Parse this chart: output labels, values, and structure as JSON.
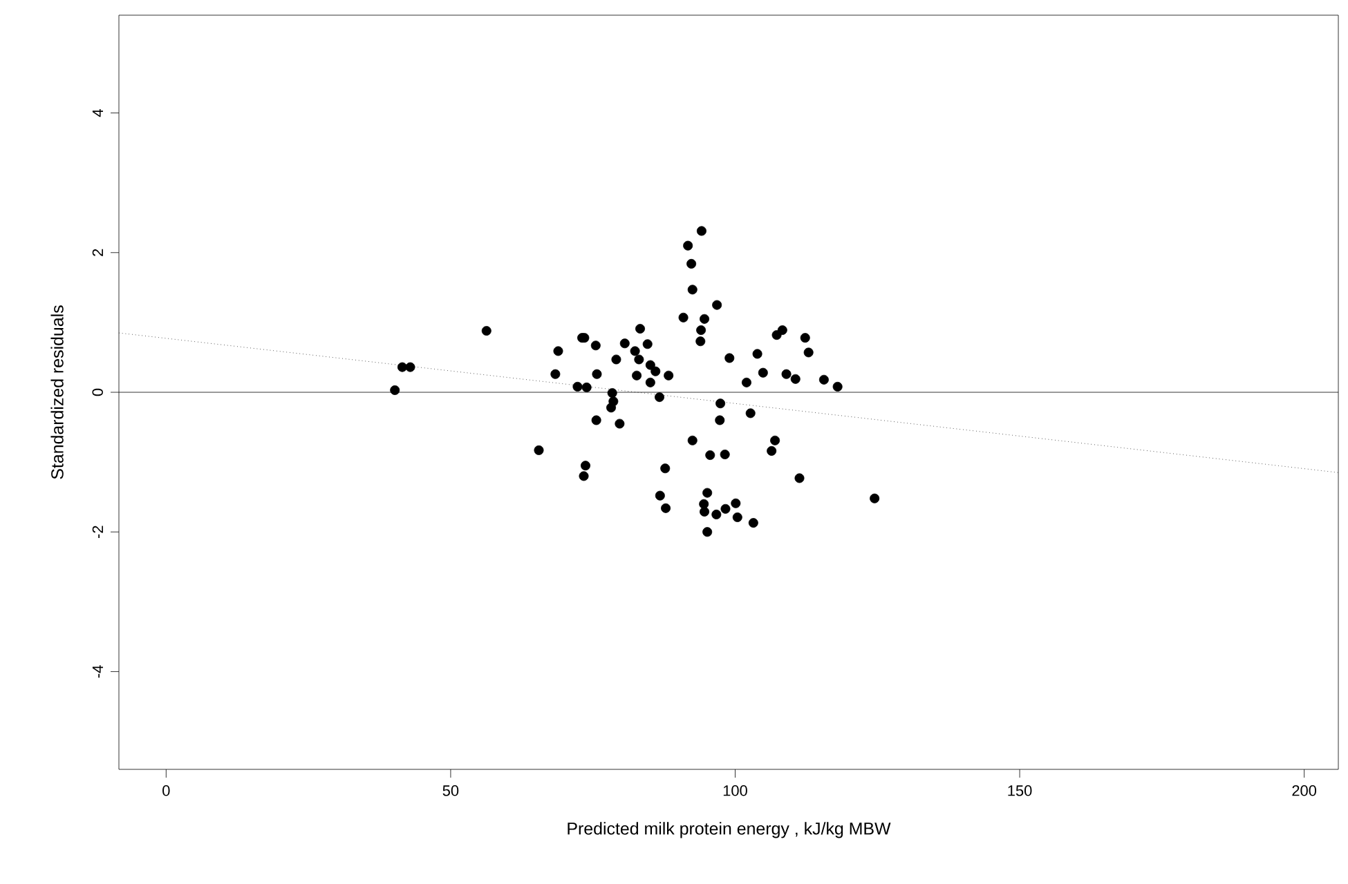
{
  "chart_data": {
    "type": "scatter",
    "xlabel": "Predicted milk protein energy , kJ/kg MBW",
    "ylabel": "Standardized residuals",
    "xlim": [
      -8.3,
      206
    ],
    "ylim": [
      -5.4,
      5.4
    ],
    "xticks": [
      0,
      50,
      100,
      150,
      200
    ],
    "yticks": [
      -4,
      -2,
      0,
      2,
      4
    ],
    "grid": false,
    "ref_lines": [
      {
        "axis": "y",
        "value": 0,
        "color": "#000000",
        "line_style": "solid"
      }
    ],
    "series": [
      {
        "color": "#000000",
        "marker": "circle",
        "x": [
          56.3,
          41.5,
          42.9,
          40.2,
          68.9,
          68.4,
          73.1,
          73.5,
          75.5,
          75.7,
          72.3,
          73.9,
          65.5,
          73.7,
          73.4,
          75.6,
          78.4,
          78.6,
          78.2,
          79.7,
          79.1,
          80.6,
          83.3,
          82.4,
          84.6,
          83.1,
          85.1,
          86.0,
          82.7,
          85.1,
          88.3,
          86.7,
          87.7,
          86.8,
          87.8,
          94.1,
          91.7,
          92.3,
          92.5,
          96.8,
          90.9,
          94.6,
          94.0,
          93.9,
          99.0,
          103.9,
          104.9,
          102.0,
          107.3,
          108.3,
          112.3,
          112.9,
          109.0,
          110.6,
          115.6,
          118.0,
          97.4,
          97.3,
          102.7,
          92.5,
          95.6,
          98.2,
          107.0,
          106.4,
          111.3,
          95.1,
          94.5,
          94.6,
          96.7,
          98.3,
          100.1,
          100.4,
          103.2,
          95.1,
          124.5
        ],
        "values": [
          0.88,
          0.36,
          0.36,
          0.03,
          0.59,
          0.26,
          0.78,
          0.78,
          0.67,
          0.26,
          0.08,
          0.07,
          -0.83,
          -1.05,
          -1.2,
          -0.4,
          -0.01,
          -0.13,
          -0.22,
          -0.45,
          0.47,
          0.7,
          0.91,
          0.59,
          0.69,
          0.47,
          0.39,
          0.3,
          0.24,
          0.14,
          0.24,
          -0.07,
          -1.09,
          -1.48,
          -1.66,
          2.31,
          2.1,
          1.84,
          1.47,
          1.25,
          1.07,
          1.05,
          0.89,
          0.73,
          0.49,
          0.55,
          0.28,
          0.14,
          0.82,
          0.89,
          0.78,
          0.57,
          0.26,
          0.19,
          0.18,
          0.08,
          -0.16,
          -0.4,
          -0.3,
          -0.69,
          -0.9,
          -0.89,
          -0.69,
          -0.84,
          -1.23,
          -1.44,
          -1.6,
          -1.71,
          -1.75,
          -1.67,
          -1.59,
          -1.79,
          -1.87,
          -2.0,
          -1.52
        ]
      },
      {
        "type": "line",
        "color": "#000000",
        "marker": "none",
        "line_style": "dotted",
        "x": [
          -8.3,
          206
        ],
        "values": [
          0.85,
          -1.15
        ]
      }
    ]
  }
}
